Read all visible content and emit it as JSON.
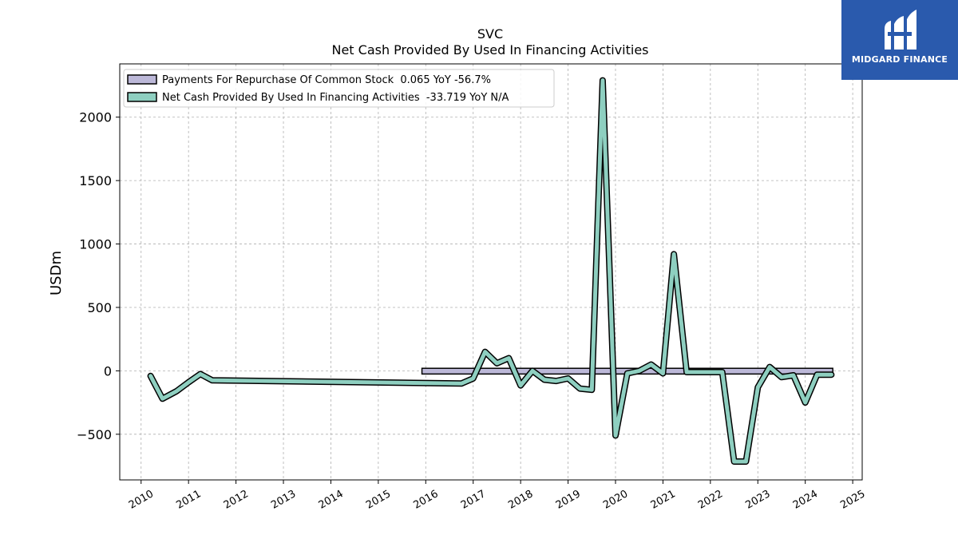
{
  "chart_data": {
    "type": "line",
    "title": "SVC",
    "subtitle": "Net Cash Provided By Used In Financing Activities",
    "ylabel": "USDm",
    "xlim": [
      2009.55,
      2025.2
    ],
    "ylim": [
      -860,
      2420
    ],
    "yticks": [
      -500,
      0,
      500,
      1000,
      1500,
      2000
    ],
    "ytick_labels": [
      "−500",
      "0",
      "500",
      "1000",
      "1500",
      "2000"
    ],
    "xticks": [
      2010,
      2011,
      2012,
      2013,
      2014,
      2015,
      2016,
      2017,
      2018,
      2019,
      2020,
      2021,
      2022,
      2023,
      2024,
      2025
    ],
    "grid": true,
    "legend_position": "top-left",
    "colors": {
      "net_cash": "#8ecfc0",
      "repurchase": "#bcb8d8",
      "outline": "#000000",
      "grid": "#b0b0b0"
    },
    "series": [
      {
        "name": "Payments For Repurchase Of Common Stock",
        "legend_label": "Payments For Repurchase Of Common Stock  0.065 YoY -56.7%",
        "kind": "bar",
        "x_start": 2015.92,
        "x_end": 2024.58,
        "y_top": 20,
        "y_bottom": -25
      },
      {
        "name": "Net Cash Provided By Used In Financing Activities",
        "legend_label": "Net Cash Provided By Used In Financing Activities  -33.719 YoY N/A",
        "kind": "line",
        "x": [
          2010.2,
          2010.45,
          2010.75,
          2011.0,
          2011.25,
          2011.5,
          2016.75,
          2017.0,
          2017.25,
          2017.5,
          2017.75,
          2018.0,
          2018.25,
          2018.5,
          2018.75,
          2019.0,
          2019.25,
          2019.5,
          2019.73,
          2020.0,
          2020.25,
          2020.5,
          2020.75,
          2021.0,
          2021.23,
          2021.5,
          2021.75,
          2022.0,
          2022.25,
          2022.5,
          2022.75,
          2023.0,
          2023.25,
          2023.5,
          2023.75,
          2024.0,
          2024.25,
          2024.55
        ],
        "y": [
          -40,
          -220,
          -160,
          -90,
          -25,
          -75,
          -100,
          -60,
          150,
          60,
          100,
          -115,
          0,
          -70,
          -80,
          -60,
          -140,
          -150,
          2290,
          -510,
          -20,
          0,
          50,
          -20,
          920,
          -10,
          -10,
          -10,
          -10,
          -715,
          -715,
          -130,
          30,
          -50,
          -35,
          -250,
          -30,
          -30
        ]
      }
    ]
  },
  "logo": {
    "text": "MIDGARD FINANCE",
    "colors": {
      "background": "#2a5aad",
      "foreground": "#ffffff"
    }
  }
}
